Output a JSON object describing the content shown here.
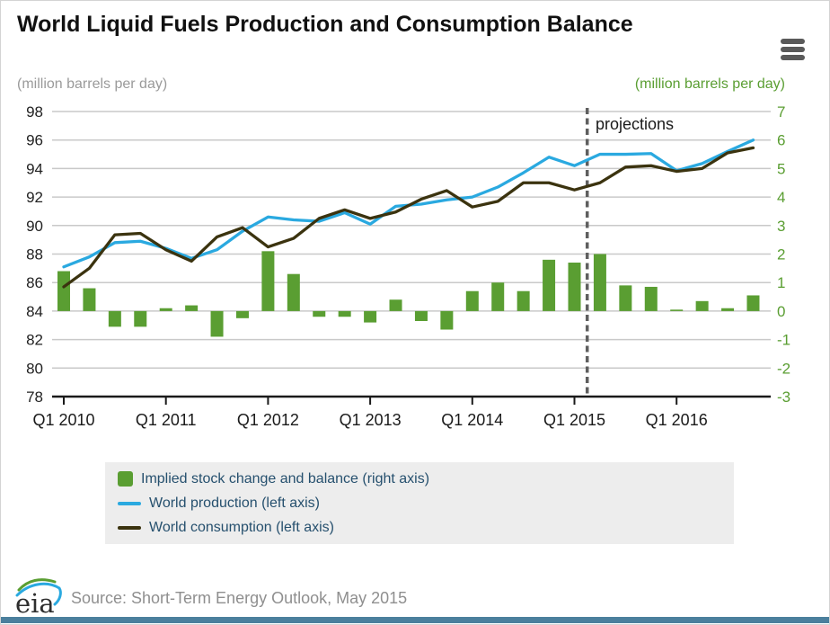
{
  "title": "World Liquid Fuels Production and Consumption Balance",
  "menu": {
    "icon": "hamburger-menu"
  },
  "projections_label": "projections",
  "source": "Source: Short-Term Energy Outlook, May 2015",
  "logo_text": "eia",
  "ui_colors": {
    "legend_background": "#ededed",
    "legend_text": "#26506e",
    "bottom_bar": "#4b7f9d",
    "gridline": "#c9c9c9",
    "dashed_projection_line": "#5f5f5f",
    "left_axis_text": "#222222",
    "right_axis_text": "#5a9e32",
    "source_text": "#8f8f8f"
  },
  "chart_data": {
    "type": "combo",
    "quarters": [
      "Q1 2010",
      "Q2 2010",
      "Q3 2010",
      "Q4 2010",
      "Q1 2011",
      "Q2 2011",
      "Q3 2011",
      "Q4 2011",
      "Q1 2012",
      "Q2 2012",
      "Q3 2012",
      "Q4 2012",
      "Q1 2013",
      "Q2 2013",
      "Q3 2013",
      "Q4 2013",
      "Q1 2014",
      "Q2 2014",
      "Q3 2014",
      "Q4 2014",
      "Q1 2015",
      "Q2 2015",
      "Q3 2015",
      "Q4 2015",
      "Q1 2016",
      "Q2 2016",
      "Q3 2016",
      "Q4 2016"
    ],
    "x_tick_labels": [
      "Q1 2010",
      "Q1 2011",
      "Q1 2012",
      "Q1 2013",
      "Q1 2014",
      "Q1 2015",
      "Q1 2016"
    ],
    "left_axis": {
      "label": "(million barrels per day)",
      "min": 78,
      "max": 98,
      "ticks": [
        98,
        96,
        94,
        92,
        90,
        88,
        86,
        84,
        82,
        80,
        78
      ]
    },
    "right_axis": {
      "label": "(million barrels per day)",
      "min": -3,
      "max": 7,
      "ticks": [
        7,
        6,
        5,
        4,
        3,
        2,
        1,
        0,
        -1,
        -2,
        -3
      ]
    },
    "projection_boundary_index": 20.5,
    "projections_annotation": "projections",
    "series": [
      {
        "name": "Implied stock change and balance (right axis)",
        "type": "bar",
        "axis": "right",
        "color": "#5a9e32",
        "values": [
          1.4,
          0.8,
          -0.55,
          -0.55,
          0.1,
          0.2,
          -0.9,
          -0.25,
          2.1,
          1.3,
          -0.2,
          -0.2,
          -0.4,
          0.4,
          -0.35,
          -0.65,
          0.7,
          1.0,
          0.7,
          1.8,
          1.7,
          2.0,
          0.9,
          0.85,
          0.05,
          0.35,
          0.1,
          0.55
        ]
      },
      {
        "name": "World production (left axis)",
        "type": "line",
        "axis": "left",
        "color": "#2aa9e0",
        "values": [
          87.1,
          87.8,
          88.8,
          88.9,
          88.4,
          87.7,
          88.3,
          89.6,
          90.6,
          90.4,
          90.3,
          90.9,
          90.1,
          91.35,
          91.5,
          91.8,
          92.0,
          92.7,
          93.7,
          94.8,
          94.2,
          95.0,
          95.0,
          95.05,
          93.85,
          94.35,
          95.2,
          96.0
        ]
      },
      {
        "name": "World consumption (left axis)",
        "type": "line",
        "axis": "left",
        "color": "#3b330f",
        "values": [
          85.7,
          87.0,
          89.35,
          89.45,
          88.3,
          87.5,
          89.2,
          89.85,
          88.5,
          89.1,
          90.5,
          91.1,
          90.5,
          90.95,
          91.85,
          92.45,
          91.3,
          91.7,
          93.0,
          93.0,
          92.5,
          93.0,
          94.1,
          94.2,
          93.8,
          94.0,
          95.1,
          95.45
        ]
      }
    ]
  }
}
